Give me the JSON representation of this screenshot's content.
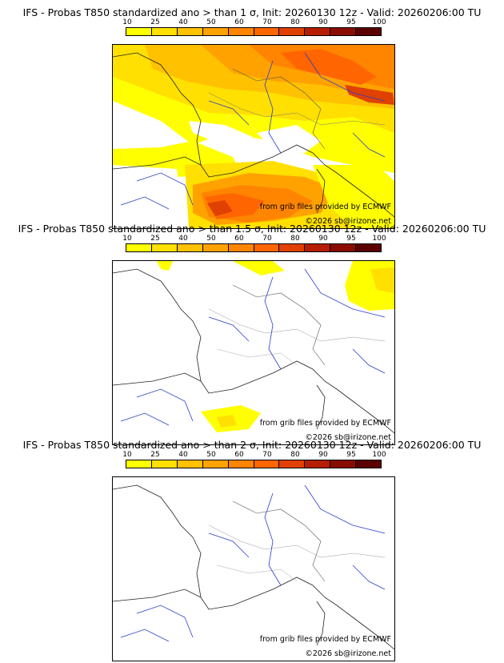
{
  "colorbar": {
    "ticks": [
      "10",
      "25",
      "40",
      "50",
      "60",
      "70",
      "80",
      "90",
      "95",
      "100"
    ],
    "colors": [
      "#ffff00",
      "#ffe000",
      "#ffc100",
      "#ffa200",
      "#ff8400",
      "#ff6500",
      "#e04000",
      "#b51e00",
      "#8a0c00",
      "#5a0000"
    ]
  },
  "panels": [
    {
      "title": "IFS - Probas T850  standardized ano > than 1 σ, Init: 20260130 12z - Valid: 20260206:00 TU",
      "credit_source": "from grib files provided by ECMWF",
      "credit_copyright": "©2026 sb@irizone.net"
    },
    {
      "title": "IFS - Probas T850  standardized ano > than 1.5 σ, Init: 20260130 12z - Valid: 20260206:00 TU",
      "credit_source": "from grib files provided by ECMWF",
      "credit_copyright": "©2026 sb@irizone.net"
    },
    {
      "title": "IFS - Probas T850  standardized ano > than 2 σ, Init: 20260130 12z - Valid: 20260206:00 TU",
      "credit_source": "from grib files provided by ECMWF",
      "credit_copyright": "©2026 sb@irizone.net"
    }
  ]
}
